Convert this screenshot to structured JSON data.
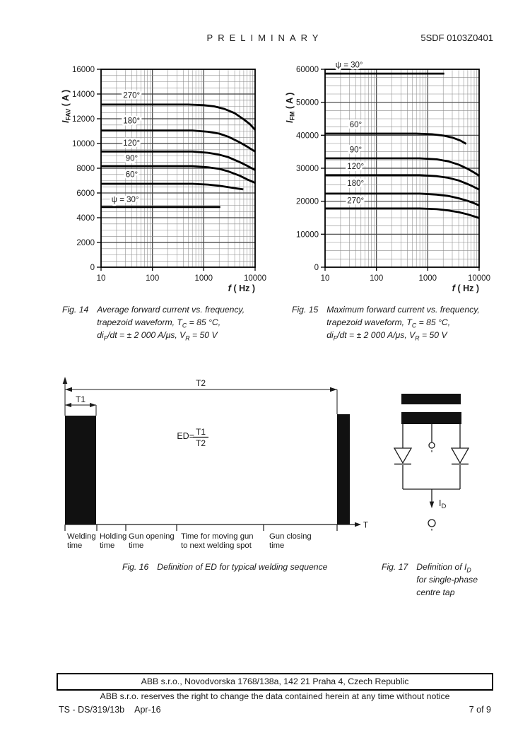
{
  "header": {
    "preliminary": "PRELIMINARY",
    "doc_number": "5SDF 0103Z0401"
  },
  "colors": {
    "ink": "#1a1a1a",
    "grid_major": "#3f3f3f",
    "grid_minor": "#8a8a8a",
    "curve": "#000000",
    "bar_fill": "#111111"
  },
  "chart_data": [
    {
      "id": "fig14",
      "type": "line",
      "xscale": "log",
      "xlim": [
        10,
        10000
      ],
      "ylim": [
        0,
        16000
      ],
      "ystep": 2000,
      "yminor": 500,
      "grid": true,
      "xlabel": "f ( Hz )",
      "xlabel_italic": "f",
      "xlabel_rest": " ( Hz )",
      "ylabel_display": "IFAV ( A )",
      "ylabel": {
        "pre": "I",
        "sub": "FAV",
        "post": " ( A )"
      },
      "xticks": [
        10,
        100,
        1000,
        10000
      ],
      "yticks": [
        0,
        2000,
        4000,
        6000,
        8000,
        10000,
        12000,
        14000,
        16000
      ],
      "series": [
        {
          "name": "270°",
          "points": [
            [
              10,
              13150
            ],
            [
              500,
              13150
            ],
            [
              1000,
              13100
            ],
            [
              1600,
              13000
            ],
            [
              2500,
              12800
            ],
            [
              4000,
              12450
            ],
            [
              6000,
              11950
            ],
            [
              8000,
              11550
            ],
            [
              10000,
              11100
            ]
          ]
        },
        {
          "name": "180°",
          "points": [
            [
              10,
              11050
            ],
            [
              600,
              11050
            ],
            [
              1200,
              10950
            ],
            [
              2000,
              10800
            ],
            [
              3000,
              10550
            ],
            [
              5000,
              10100
            ],
            [
              7000,
              9750
            ],
            [
              10000,
              9350
            ]
          ]
        },
        {
          "name": "120°",
          "points": [
            [
              10,
              9350
            ],
            [
              600,
              9350
            ],
            [
              1200,
              9250
            ],
            [
              2000,
              9100
            ],
            [
              3000,
              8900
            ],
            [
              5000,
              8500
            ],
            [
              7000,
              8200
            ],
            [
              10000,
              7850
            ]
          ]
        },
        {
          "name": "90°",
          "points": [
            [
              10,
              8170
            ],
            [
              600,
              8170
            ],
            [
              1200,
              8080
            ],
            [
              2000,
              7950
            ],
            [
              3000,
              7750
            ],
            [
              5000,
              7400
            ],
            [
              7000,
              7100
            ],
            [
              10000,
              6820
            ]
          ]
        },
        {
          "name": "60°",
          "points": [
            [
              10,
              6740
            ],
            [
              600,
              6740
            ],
            [
              1200,
              6680
            ],
            [
              2000,
              6580
            ],
            [
              3000,
              6470
            ],
            [
              4500,
              6360
            ],
            [
              5900,
              6290
            ]
          ]
        },
        {
          "name": "ψ = 30°",
          "points": [
            [
              10,
              4870
            ],
            [
              2100,
              4870
            ]
          ]
        }
      ],
      "labels": [
        {
          "text": "270°",
          "f": 27,
          "v": 13900
        },
        {
          "text": "180°",
          "f": 27,
          "v": 11850
        },
        {
          "text": "120°",
          "f": 27,
          "v": 10050
        },
        {
          "text": "90°",
          "f": 30,
          "v": 8830
        },
        {
          "text": "60°",
          "f": 30,
          "v": 7520
        },
        {
          "text": "ψ = 30°",
          "f": 16,
          "v": 5480
        }
      ]
    },
    {
      "id": "fig15",
      "type": "line",
      "xscale": "log",
      "xlim": [
        10,
        10000
      ],
      "ylim": [
        0,
        60000
      ],
      "ystep": 10000,
      "yminor": 2500,
      "grid": true,
      "xlabel": "f ( Hz )",
      "xlabel_italic": "f",
      "xlabel_rest": " ( Hz )",
      "ylabel_display": "IFM ( A )",
      "ylabel": {
        "pre": "I",
        "sub": "FM",
        "post": " ( A )"
      },
      "xticks": [
        10,
        100,
        1000,
        10000
      ],
      "yticks": [
        0,
        10000,
        20000,
        30000,
        40000,
        50000,
        60000
      ],
      "series": [
        {
          "name": "ψ = 30°",
          "points": [
            [
              10,
              58700
            ],
            [
              2100,
              58700
            ]
          ]
        },
        {
          "name": "60°",
          "points": [
            [
              10,
              40500
            ],
            [
              600,
              40500
            ],
            [
              1200,
              40300
            ],
            [
              2000,
              39900
            ],
            [
              3000,
              39300
            ],
            [
              4300,
              38400
            ],
            [
              5600,
              37400
            ]
          ]
        },
        {
          "name": "90°",
          "points": [
            [
              10,
              33000
            ],
            [
              700,
              33000
            ],
            [
              1500,
              32700
            ],
            [
              2500,
              32100
            ],
            [
              4000,
              31100
            ],
            [
              6000,
              29800
            ],
            [
              8000,
              28700
            ],
            [
              10000,
              27700
            ]
          ]
        },
        {
          "name": "120°",
          "points": [
            [
              10,
              27900
            ],
            [
              700,
              27900
            ],
            [
              1500,
              27600
            ],
            [
              2500,
              27100
            ],
            [
              4000,
              26300
            ],
            [
              6000,
              25200
            ],
            [
              8000,
              24300
            ],
            [
              10000,
              23500
            ]
          ]
        },
        {
          "name": "180°",
          "points": [
            [
              10,
              22300
            ],
            [
              700,
              22300
            ],
            [
              1500,
              22000
            ],
            [
              2500,
              21600
            ],
            [
              4000,
              20900
            ],
            [
              6000,
              20100
            ],
            [
              8000,
              19400
            ],
            [
              10000,
              18700
            ]
          ]
        },
        {
          "name": "270°",
          "points": [
            [
              10,
              17800
            ],
            [
              700,
              17800
            ],
            [
              1500,
              17600
            ],
            [
              2500,
              17200
            ],
            [
              4000,
              16700
            ],
            [
              6000,
              16000
            ],
            [
              8000,
              15400
            ],
            [
              10000,
              14900
            ]
          ]
        }
      ],
      "labels": [
        {
          "text": "ψ = 30°",
          "f": 16,
          "v": 61400
        },
        {
          "text": "60°",
          "f": 30,
          "v": 43300
        },
        {
          "text": "90°",
          "f": 30,
          "v": 35700
        },
        {
          "text": "120°",
          "f": 27,
          "v": 30600
        },
        {
          "text": "180°",
          "f": 27,
          "v": 25500
        },
        {
          "text": "270°",
          "f": 27,
          "v": 20300
        }
      ]
    }
  ],
  "captions": {
    "fig14": {
      "label": "Fig. 14",
      "lines": [
        [
          {
            "t": "Average forward current vs. frequency,"
          }
        ],
        [
          {
            "t": "trapezoid waveform, T"
          },
          {
            "t": "C",
            "sub": true
          },
          {
            "t": " = 85 °C,"
          }
        ],
        [
          {
            "t": "di"
          },
          {
            "t": "F",
            "sub": true
          },
          {
            "t": "/dt = ± 2 000 A/μs, V"
          },
          {
            "t": "R",
            "sub": true
          },
          {
            "t": " = 50 V"
          }
        ]
      ]
    },
    "fig15": {
      "label": "Fig. 15",
      "lines": [
        [
          {
            "t": "Maximum forward current vs. frequency,"
          }
        ],
        [
          {
            "t": "trapezoid waveform, T"
          },
          {
            "t": "C",
            "sub": true
          },
          {
            "t": " = 85 °C,"
          }
        ],
        [
          {
            "t": "di"
          },
          {
            "t": "F",
            "sub": true
          },
          {
            "t": "/dt = ± 2 000 A/μs, V"
          },
          {
            "t": "R",
            "sub": true
          },
          {
            "t": " = 50 V"
          }
        ]
      ]
    },
    "fig16": {
      "label": "Fig. 16",
      "lines": [
        [
          {
            "t": "Definition of ED for typical welding sequence"
          }
        ]
      ]
    },
    "fig17": {
      "label": "Fig. 17",
      "lines": [
        [
          {
            "t": "Definition of I"
          },
          {
            "t": "D",
            "sub": true
          }
        ],
        [
          {
            "t": "for single-phase"
          }
        ],
        [
          {
            "t": "centre tap"
          }
        ]
      ]
    }
  },
  "fig16": {
    "t1": "T1",
    "t2": "T2",
    "ed_label": "ED=",
    "ed_num": "T1",
    "ed_den": "T2",
    "t_axis": "T",
    "segments": [
      {
        "line1": "Welding",
        "line2": "time"
      },
      {
        "line1": "Holding",
        "line2": "time"
      },
      {
        "line1": "Gun opening",
        "line2": "time"
      },
      {
        "line1": "Time for moving gun",
        "line2": "to next welding spot"
      },
      {
        "line1": "Gun closing",
        "line2": "time"
      }
    ]
  },
  "fig17": {
    "current_label": {
      "pre": "I",
      "sub": "D"
    }
  },
  "footer": {
    "address": "ABB s.r.o., Novodvorska 1768/138a, 142 21 Praha 4, Czech Republic",
    "notice": "ABB s.r.o. reserves the right to change the data contained herein at any time without notice",
    "doc_ref": "TS - DS/319/13b",
    "date": "Apr-16",
    "page": "7 of 9"
  }
}
